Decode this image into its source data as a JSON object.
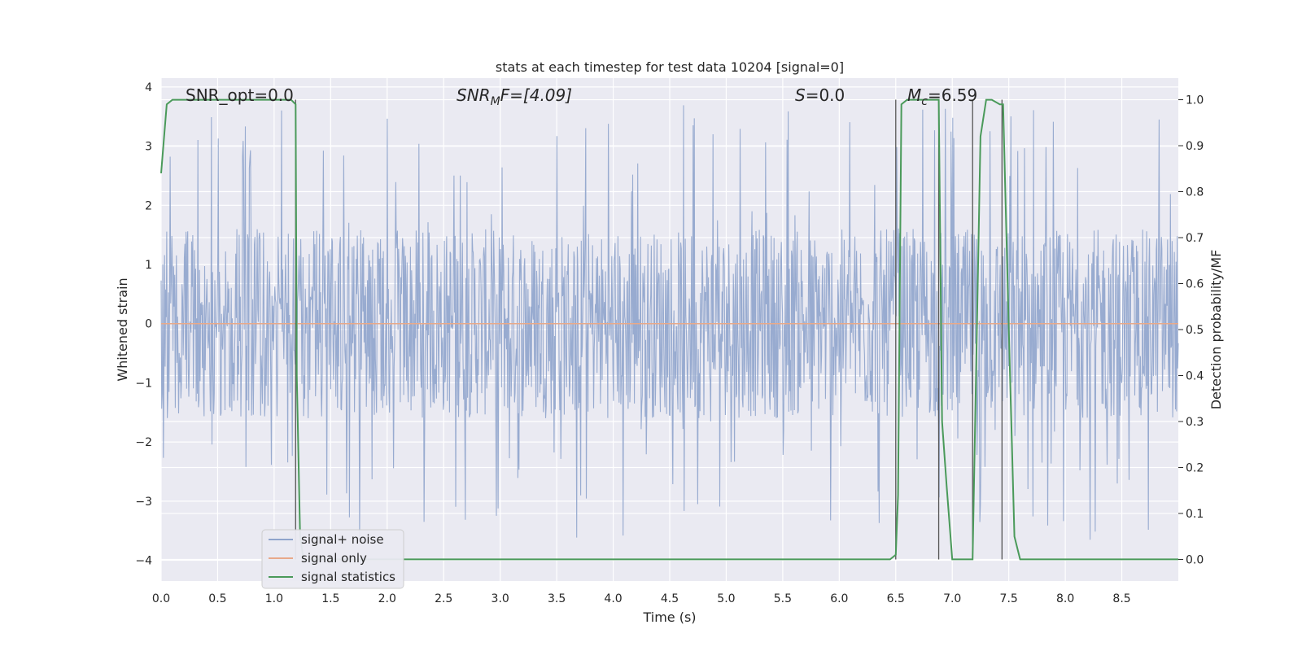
{
  "chart_data": {
    "type": "line",
    "title": "stats at each timestep for test data 10204 [signal=0]",
    "xlabel": "Time (s)",
    "ylabel": "Whitened strain",
    "y2label": "Detection probability/MF",
    "xlim": [
      0.0,
      9.0
    ],
    "ylim": [
      -4.35,
      4.15
    ],
    "y2lim": [
      -0.047,
      1.047
    ],
    "xticks": [
      "0.0",
      "0.5",
      "1.0",
      "1.5",
      "2.0",
      "2.5",
      "3.0",
      "3.5",
      "4.0",
      "4.5",
      "5.0",
      "5.5",
      "6.0",
      "6.5",
      "7.0",
      "7.5",
      "8.0",
      "8.5"
    ],
    "yticks": [
      "4",
      "3",
      "2",
      "1",
      "0",
      "−1",
      "−2",
      "−3",
      "−4"
    ],
    "y2ticks": [
      "1.0",
      "0.9",
      "0.8",
      "0.7",
      "0.6",
      "0.5",
      "0.4",
      "0.3",
      "0.2",
      "0.1",
      "0.0"
    ],
    "grid": true,
    "legend": {
      "placement": "lower-left",
      "entries": [
        "signal+ noise",
        "signal only",
        "signal statistics"
      ]
    },
    "annotations": {
      "snr_opt": "SNR_opt=0.0",
      "snr_mf_main": "SNR",
      "snr_mf_sub": "M",
      "snr_mf_rest": "F=[4.09]",
      "s_main": "S",
      "s_rest": "=0.0",
      "mc_main": "M",
      "mc_sub": "c",
      "mc_rest": "=6.59"
    },
    "series": [
      {
        "name": "signal+ noise",
        "color": "#8fa4cc",
        "description_kind": "noise",
        "stats": {
          "core_amplitude": 1.6,
          "peak_amplitude": 3.7,
          "samples": 1800,
          "seed": 10204
        }
      },
      {
        "name": "signal only",
        "color": "#e8a98a",
        "x": [
          0.0,
          9.0
        ],
        "y": [
          0.0,
          0.0
        ]
      },
      {
        "name": "signal statistics",
        "color": "#4a9a5a",
        "axis": "right",
        "x": [
          0.0,
          0.05,
          0.1,
          0.2,
          0.5,
          1.0,
          1.15,
          1.19,
          1.2,
          1.23,
          1.26,
          1.3,
          2.0,
          4.0,
          6.0,
          6.45,
          6.5,
          6.52,
          6.55,
          6.6,
          6.7,
          6.88,
          6.91,
          6.95,
          7.0,
          7.1,
          7.18,
          7.25,
          7.3,
          7.35,
          7.42,
          7.45,
          7.5,
          7.55,
          7.6,
          8.0,
          9.0
        ],
        "y": [
          0.84,
          0.99,
          1.0,
          1.0,
          1.0,
          1.0,
          1.0,
          0.99,
          0.4,
          0.05,
          0.0,
          0.0,
          0.0,
          0.0,
          0.0,
          0.0,
          0.01,
          0.14,
          0.99,
          1.0,
          1.0,
          1.0,
          0.3,
          0.16,
          0.0,
          0.0,
          0.0,
          0.92,
          1.0,
          1.0,
          0.99,
          0.99,
          0.5,
          0.05,
          0.0,
          0.0,
          0.0
        ]
      }
    ],
    "vlines": {
      "color": "#555555",
      "x": [
        1.19,
        6.5,
        6.88,
        7.18,
        7.44
      ],
      "y2_top": 1.0
    }
  }
}
